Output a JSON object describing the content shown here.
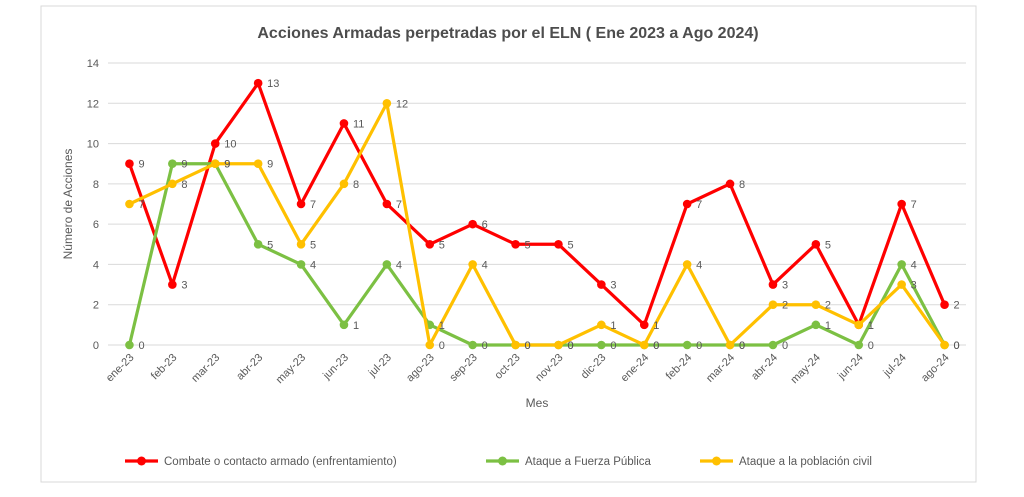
{
  "chart_data": {
    "type": "line",
    "title": "Acciones Armadas perpetradas por el ELN ( Ene 2023 a Ago 2024)",
    "xlabel": "Mes",
    "ylabel": "Número de Acciones",
    "ylim": [
      0,
      14
    ],
    "ytick_step": 2,
    "grid": true,
    "legend_position": "bottom",
    "marker": "circle",
    "categories": [
      "ene-23",
      "feb-23",
      "mar-23",
      "abr-23",
      "may-23",
      "jun-23",
      "jul-23",
      "ago-23",
      "sep-23",
      "oct-23",
      "nov-23",
      "dic-23",
      "ene-24",
      "feb-24",
      "mar-24",
      "abr-24",
      "may-24",
      "jun-24",
      "jul-24",
      "ago-24"
    ],
    "series": [
      {
        "name": "Combate o contacto armado (enfrentamiento)",
        "color": "#FF0000",
        "values": [
          9,
          3,
          10,
          13,
          7,
          11,
          7,
          5,
          6,
          5,
          5,
          3,
          1,
          7,
          8,
          3,
          5,
          1,
          7,
          2
        ]
      },
      {
        "name": "Ataque a Fuerza Pública",
        "color": "#7CC043",
        "values": [
          0,
          9,
          9,
          5,
          4,
          1,
          4,
          1,
          0,
          0,
          0,
          0,
          0,
          0,
          0,
          0,
          1,
          0,
          4,
          0
        ]
      },
      {
        "name": "Ataque a la población civil",
        "color": "#FFC000",
        "values": [
          7,
          8,
          9,
          9,
          5,
          8,
          12,
          0,
          4,
          0,
          0,
          1,
          0,
          4,
          0,
          2,
          2,
          1,
          3,
          0
        ]
      }
    ]
  },
  "palette": {
    "background": "#FFFFFF",
    "frame_border": "#D9D9D9",
    "gridline": "#DADADA",
    "tick_text": "#595959",
    "title_text": "#4D4D4D"
  }
}
